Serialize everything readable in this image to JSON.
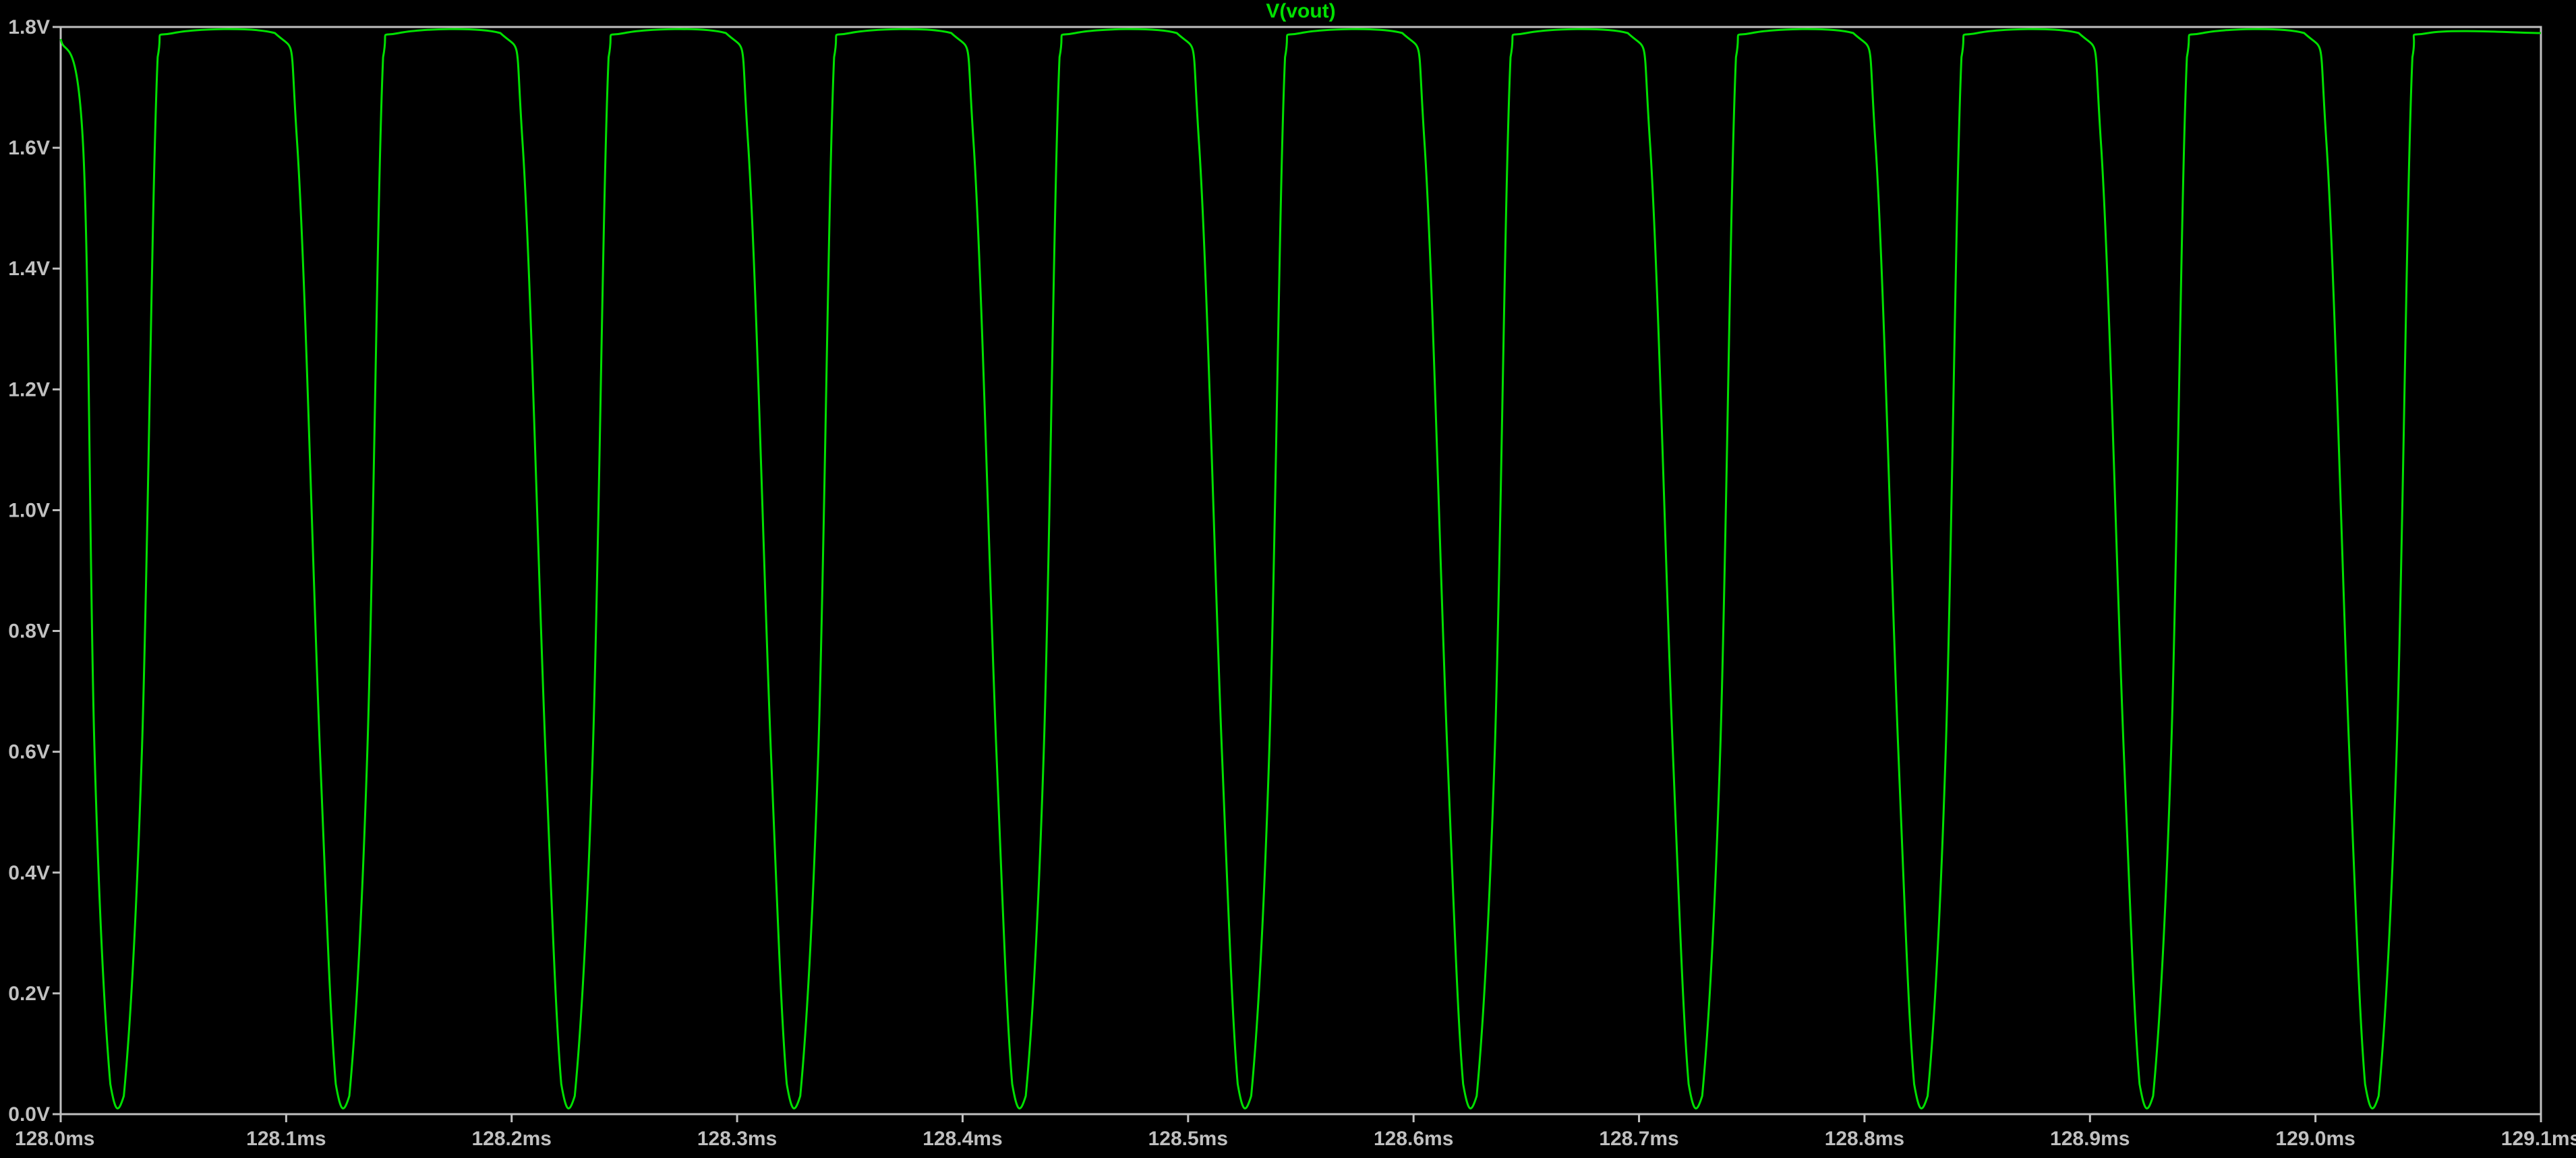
{
  "trace_label": "V(vout)",
  "colors": {
    "background": "#000000",
    "trace": "#00e000",
    "axes": "#c0c0c0",
    "labels": "#c0c0c0"
  },
  "chart_data": {
    "type": "line",
    "title": "V(vout)",
    "xlabel": "",
    "ylabel": "",
    "xlim": [
      128.0,
      129.1
    ],
    "ylim": [
      0.0,
      1.8
    ],
    "x_unit": "ms",
    "y_unit": "V",
    "grid": false,
    "x_ticks": [
      "128.0ms",
      "128.1ms",
      "128.2ms",
      "128.3ms",
      "128.4ms",
      "128.5ms",
      "128.6ms",
      "128.7ms",
      "128.8ms",
      "128.9ms",
      "129.0ms",
      "129.1ms"
    ],
    "y_ticks": [
      "0.0V",
      "0.2V",
      "0.4V",
      "0.6V",
      "0.8V",
      "1.0V",
      "1.2V",
      "1.4V",
      "1.6V",
      "1.8V"
    ],
    "series": [
      {
        "name": "V(vout)",
        "x": [
          128.0,
          128.01,
          128.015,
          128.022,
          128.028,
          128.036,
          128.043,
          128.05,
          128.095,
          128.105,
          128.115,
          128.122,
          128.128,
          128.136,
          128.143,
          128.15,
          128.195,
          128.205,
          128.215,
          128.222,
          128.228,
          128.236,
          128.243,
          128.25,
          128.295,
          128.305,
          128.315,
          128.322,
          128.328,
          128.336,
          128.343,
          128.35,
          128.395,
          128.405,
          128.415,
          128.422,
          128.428,
          128.436,
          128.443,
          128.45,
          128.495,
          128.505,
          128.515,
          128.522,
          128.528,
          128.536,
          128.543,
          128.55,
          128.595,
          128.605,
          128.615,
          128.622,
          128.628,
          128.636,
          128.643,
          128.65,
          128.695,
          128.705,
          128.715,
          128.722,
          128.728,
          128.736,
          128.743,
          128.75,
          128.795,
          128.805,
          128.815,
          128.822,
          128.828,
          128.836,
          128.843,
          128.85,
          128.895,
          128.905,
          128.915,
          128.922,
          128.928,
          128.936,
          128.943,
          128.95,
          128.995,
          129.005,
          129.015,
          129.022,
          129.028,
          129.036,
          129.043,
          129.05,
          129.1
        ],
        "y": [
          1.78,
          1.6,
          0.6,
          0.05,
          0.03,
          0.6,
          1.75,
          1.79,
          1.79,
          1.6,
          0.6,
          0.05,
          0.03,
          0.6,
          1.75,
          1.79,
          1.79,
          1.6,
          0.6,
          0.05,
          0.03,
          0.6,
          1.75,
          1.79,
          1.79,
          1.6,
          0.6,
          0.05,
          0.03,
          0.6,
          1.75,
          1.79,
          1.79,
          1.6,
          0.6,
          0.05,
          0.03,
          0.6,
          1.75,
          1.79,
          1.79,
          1.6,
          0.6,
          0.05,
          0.03,
          0.6,
          1.75,
          1.79,
          1.79,
          1.6,
          0.6,
          0.05,
          0.03,
          0.6,
          1.75,
          1.79,
          1.79,
          1.6,
          0.6,
          0.05,
          0.03,
          0.6,
          1.75,
          1.79,
          1.79,
          1.6,
          0.6,
          0.05,
          0.03,
          0.6,
          1.75,
          1.79,
          1.79,
          1.6,
          0.6,
          0.05,
          0.03,
          0.6,
          1.75,
          1.79,
          1.79,
          1.6,
          0.6,
          0.05,
          0.03,
          0.6,
          1.75,
          1.79,
          1.79
        ]
      }
    ]
  }
}
